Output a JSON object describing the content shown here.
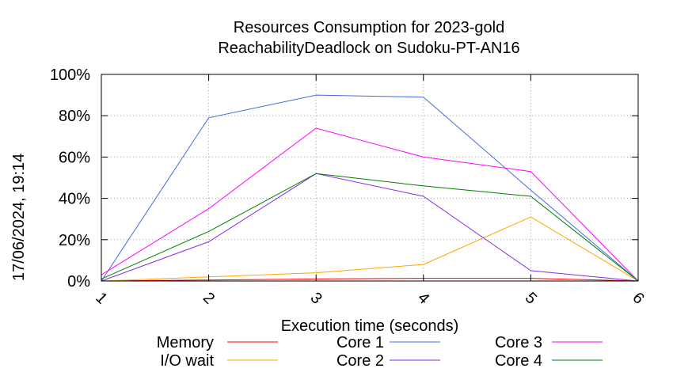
{
  "chart_data": {
    "type": "line",
    "title": "Resources Consumption for 2023-gold",
    "subtitle": "ReachabilityDeadlock on Sudoku-PT-AN16",
    "xlabel": "Execution time (seconds)",
    "ylabel": "",
    "side_label": "17/06/2024, 19:14",
    "x": [
      1,
      2,
      3,
      4,
      5,
      6
    ],
    "x_ticks": [
      "1",
      "2",
      "3",
      "4",
      "5",
      "6"
    ],
    "xlim": [
      1,
      6
    ],
    "ylim": [
      0,
      100
    ],
    "y_ticks": [
      "0%",
      "20%",
      "40%",
      "60%",
      "80%",
      "100%"
    ],
    "grid": true,
    "legend_position": "bottom",
    "series": [
      {
        "name": "Memory",
        "color": "#ff0000",
        "values": [
          0,
          0.5,
          1,
          1.3,
          1.3,
          0
        ]
      },
      {
        "name": "I/O wait",
        "color": "#ffa500",
        "values": [
          0,
          2,
          4,
          8,
          31,
          0
        ]
      },
      {
        "name": "Core 1",
        "color": "#4169e1",
        "values": [
          0,
          79,
          90,
          89,
          44,
          0
        ]
      },
      {
        "name": "Core 2",
        "color": "#8a2be2",
        "values": [
          0,
          19,
          52,
          41,
          5,
          0
        ]
      },
      {
        "name": "Core 3",
        "color": "#ff00ff",
        "values": [
          3,
          35,
          74,
          60,
          53,
          0
        ]
      },
      {
        "name": "Core 4",
        "color": "#008000",
        "values": [
          1,
          24,
          52,
          46,
          41,
          0
        ]
      }
    ]
  }
}
